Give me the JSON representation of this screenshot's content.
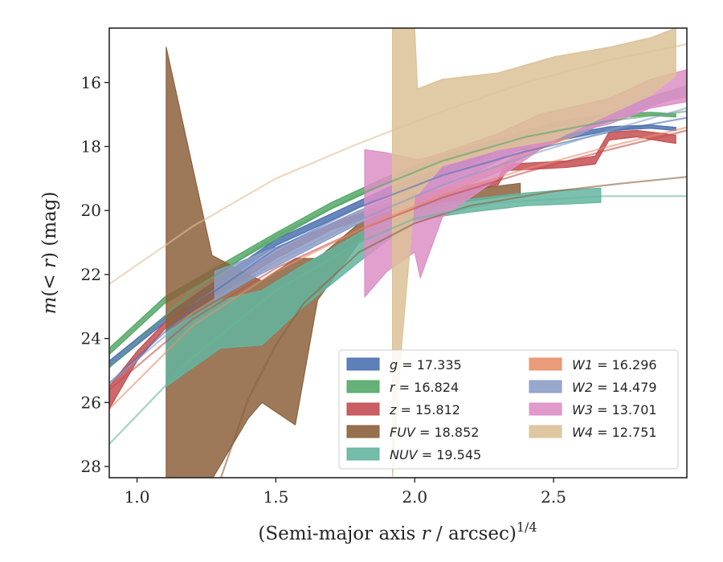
{
  "chart_data": {
    "type": "line",
    "title": "",
    "xlabel_main": "(Semi-major axis ",
    "xlabel_var": "r",
    "xlabel_tail": " / arcsec)",
    "xlabel_sup": "1/4",
    "ylabel_main": "m",
    "ylabel_open": "(< ",
    "ylabel_var": "r",
    "ylabel_tail": ") (mag)",
    "xlim": [
      0.9,
      2.98
    ],
    "ylim": [
      28.35,
      14.3
    ],
    "y_inverted": true,
    "xticks": [
      "1.0",
      "1.5",
      "2.0",
      "2.5"
    ],
    "xtick_values": [
      1.0,
      1.5,
      2.0,
      2.5
    ],
    "yticks": [
      "16",
      "18",
      "20",
      "22",
      "24",
      "26",
      "28"
    ],
    "ytick_values": [
      16,
      18,
      20,
      22,
      24,
      26,
      28
    ],
    "grid": false,
    "legend_position": "lower-right",
    "series": [
      {
        "name": "g = 17.335",
        "var": "g",
        "value": "17.335",
        "color": "#4c72b0",
        "band": [
          [
            0.9,
            24.9,
            24.7
          ],
          [
            1.1,
            23.5,
            23.3
          ],
          [
            1.3,
            22.3,
            22.1
          ],
          [
            1.5,
            21.1,
            20.9
          ],
          [
            1.7,
            20.3,
            20.1
          ],
          [
            1.9,
            19.5,
            19.3
          ],
          [
            2.1,
            18.85,
            18.65
          ],
          [
            2.3,
            18.3,
            18.15
          ],
          [
            2.5,
            17.85,
            17.7
          ],
          [
            2.7,
            17.5,
            17.38
          ],
          [
            2.85,
            17.43,
            17.33
          ],
          [
            2.94,
            17.5,
            17.4
          ]
        ],
        "model": [
          [
            0.9,
            25.4
          ],
          [
            1.2,
            23.0
          ],
          [
            1.5,
            21.2
          ],
          [
            1.8,
            19.9
          ],
          [
            2.1,
            18.9
          ],
          [
            2.4,
            18.15
          ],
          [
            2.7,
            17.55
          ],
          [
            2.98,
            17.1
          ]
        ]
      },
      {
        "name": "r = 16.824",
        "var": "r",
        "value": "16.824",
        "color": "#55a868",
        "band": [
          [
            0.9,
            24.5,
            24.3
          ],
          [
            1.1,
            22.9,
            22.7
          ],
          [
            1.3,
            21.9,
            21.7
          ],
          [
            1.5,
            20.9,
            20.7
          ],
          [
            1.7,
            19.95,
            19.75
          ],
          [
            1.9,
            19.15,
            18.95
          ],
          [
            2.1,
            18.45,
            18.25
          ],
          [
            2.3,
            17.9,
            17.75
          ],
          [
            2.5,
            17.4,
            17.25
          ],
          [
            2.7,
            17.1,
            16.98
          ],
          [
            2.85,
            17.03,
            16.93
          ],
          [
            2.94,
            17.08,
            16.98
          ]
        ],
        "model": [
          [
            0.9,
            24.9
          ],
          [
            1.2,
            22.5
          ],
          [
            1.5,
            20.8
          ],
          [
            1.8,
            19.5
          ],
          [
            2.1,
            18.45
          ],
          [
            2.4,
            17.7
          ],
          [
            2.7,
            17.2
          ],
          [
            2.98,
            16.9
          ]
        ]
      },
      {
        "name": "z = 15.812",
        "var": "z",
        "value": "15.812",
        "color": "#c44e52",
        "band": [
          [
            0.9,
            26.2,
            25.5
          ],
          [
            1.0,
            24.7,
            24.4
          ],
          [
            1.1,
            23.7,
            23.5
          ],
          [
            1.3,
            22.6,
            22.4
          ],
          [
            1.5,
            21.5,
            21.3
          ],
          [
            1.7,
            20.6,
            20.4
          ],
          [
            1.9,
            20.0,
            19.8
          ],
          [
            2.05,
            19.6,
            19.4
          ],
          [
            2.2,
            19.35,
            19.2
          ],
          [
            2.3,
            19.2,
            19.0
          ],
          [
            2.33,
            18.75,
            18.55
          ],
          [
            2.45,
            18.7,
            18.5
          ],
          [
            2.55,
            18.65,
            18.45
          ],
          [
            2.65,
            18.55,
            18.3
          ],
          [
            2.7,
            17.8,
            17.55
          ],
          [
            2.8,
            17.7,
            17.5
          ],
          [
            2.9,
            17.85,
            17.6
          ],
          [
            2.94,
            17.9,
            17.65
          ]
        ],
        "model": [
          [
            0.9,
            25.6
          ],
          [
            1.2,
            23.4
          ],
          [
            1.5,
            21.8
          ],
          [
            1.8,
            20.6
          ],
          [
            2.1,
            19.6
          ],
          [
            2.4,
            18.8
          ],
          [
            2.7,
            18.1
          ],
          [
            2.98,
            17.5
          ]
        ]
      },
      {
        "name": "FUV = 18.852",
        "var": "FUV",
        "value": "18.852",
        "color": "#8c613c",
        "band": [
          [
            1.105,
            28.4,
            14.9
          ],
          [
            1.27,
            28.4,
            21.4
          ],
          [
            1.4,
            26.5,
            22.0
          ],
          [
            1.45,
            26.0,
            22.2
          ],
          [
            1.57,
            26.7,
            21.5
          ],
          [
            1.65,
            22.8,
            21.5
          ],
          [
            1.8,
            21.0,
            20.4
          ],
          [
            2.0,
            20.0,
            19.7
          ],
          [
            2.2,
            19.7,
            19.35
          ],
          [
            2.38,
            19.5,
            19.15
          ]
        ],
        "model": [
          [
            1.3,
            28.4
          ],
          [
            1.4,
            25.9
          ],
          [
            1.5,
            24.2
          ],
          [
            1.6,
            22.9
          ],
          [
            1.8,
            21.3
          ],
          [
            2.0,
            20.4
          ],
          [
            2.2,
            19.85
          ],
          [
            2.5,
            19.4
          ],
          [
            2.75,
            19.15
          ],
          [
            2.98,
            18.95
          ]
        ]
      },
      {
        "name": "NUV = 19.545",
        "var": "NUV",
        "value": "19.545",
        "color": "#64b5a0",
        "band": [
          [
            1.105,
            25.5,
            23.8
          ],
          [
            1.3,
            24.3,
            22.8
          ],
          [
            1.45,
            24.2,
            22.5
          ],
          [
            1.6,
            23.0,
            21.7
          ],
          [
            1.8,
            21.6,
            20.7
          ],
          [
            2.0,
            20.3,
            19.9
          ],
          [
            2.2,
            20.05,
            19.65
          ],
          [
            2.4,
            19.85,
            19.45
          ],
          [
            2.55,
            19.8,
            19.35
          ],
          [
            2.67,
            19.75,
            19.3
          ]
        ],
        "model": [
          [
            0.9,
            27.3
          ],
          [
            1.2,
            24.6
          ],
          [
            1.5,
            22.5
          ],
          [
            1.8,
            21.0
          ],
          [
            2.0,
            20.25
          ],
          [
            2.3,
            19.75
          ],
          [
            2.68,
            19.55
          ],
          [
            2.98,
            19.55
          ]
        ]
      },
      {
        "name": "W1 = 16.296",
        "var": "W1",
        "value": "16.296",
        "color": "#e8906a",
        "band": [
          [
            1.93,
            20.0,
            19.8
          ],
          [
            2.1,
            19.5,
            19.3
          ],
          [
            2.3,
            18.8,
            18.6
          ],
          [
            2.4,
            18.3,
            18.1
          ],
          [
            2.5,
            17.9,
            17.7
          ],
          [
            2.6,
            17.6,
            17.35
          ],
          [
            2.7,
            17.2,
            16.9
          ],
          [
            2.8,
            16.9,
            16.6
          ],
          [
            2.9,
            16.6,
            16.3
          ],
          [
            2.98,
            16.45,
            16.2
          ]
        ],
        "model": [
          [
            0.9,
            26.2
          ],
          [
            1.2,
            23.6
          ],
          [
            1.5,
            21.9
          ],
          [
            1.8,
            20.6
          ],
          [
            2.1,
            19.5
          ],
          [
            2.4,
            18.7
          ],
          [
            2.7,
            18.0
          ],
          [
            2.98,
            17.4
          ]
        ]
      },
      {
        "name": "W2 = 14.479",
        "var": "W2",
        "value": "14.479",
        "color": "#8d9dc7",
        "band": [
          [
            1.28,
            22.8,
            21.9
          ],
          [
            1.4,
            22.2,
            21.5
          ],
          [
            1.6,
            21.3,
            20.8
          ],
          [
            1.8,
            20.4,
            20.0
          ],
          [
            2.0,
            19.6,
            19.3
          ],
          [
            2.2,
            18.9,
            18.6
          ],
          [
            2.4,
            18.0,
            17.7
          ],
          [
            2.6,
            17.6,
            17.3
          ],
          [
            2.7,
            17.2,
            16.9
          ],
          [
            2.8,
            16.9,
            16.6
          ],
          [
            2.98,
            16.35,
            16.1
          ]
        ],
        "model": [
          [
            0.9,
            25.4
          ],
          [
            1.2,
            23.2
          ],
          [
            1.5,
            21.6
          ],
          [
            1.8,
            20.3
          ],
          [
            2.1,
            19.2
          ],
          [
            2.4,
            18.3
          ],
          [
            2.7,
            17.5
          ],
          [
            2.98,
            16.8
          ]
        ]
      },
      {
        "name": "W3 = 13.701",
        "var": "W3",
        "value": "13.701",
        "color": "#dd8fc5",
        "band": [
          [
            1.82,
            22.7,
            18.1
          ],
          [
            1.9,
            21.9,
            18.2
          ],
          [
            2.0,
            21.3,
            18.4
          ],
          [
            2.02,
            22.1,
            18.4
          ],
          [
            2.1,
            20.2,
            18.2
          ],
          [
            2.3,
            19.0,
            17.6
          ],
          [
            2.45,
            18.1,
            17.0
          ],
          [
            2.55,
            17.6,
            16.8
          ],
          [
            2.7,
            17.3,
            16.5
          ],
          [
            2.85,
            16.8,
            15.9
          ],
          [
            2.98,
            16.6,
            15.6
          ]
        ],
        "model": []
      },
      {
        "name": "W4 = 12.751",
        "var": "W4",
        "value": "12.751",
        "color": "#dcc197",
        "band": [
          [
            1.92,
            28.3,
            14.3
          ],
          [
            1.95,
            24.5,
            14.3
          ],
          [
            2.0,
            19.5,
            14.3
          ],
          [
            2.01,
            19.5,
            16.2
          ],
          [
            2.1,
            18.6,
            15.9
          ],
          [
            2.3,
            18.1,
            15.7
          ],
          [
            2.5,
            17.8,
            15.2
          ],
          [
            2.7,
            17.0,
            14.9
          ],
          [
            2.85,
            16.4,
            14.6
          ],
          [
            2.94,
            15.8,
            14.3
          ]
        ],
        "model": [
          [
            0.9,
            22.3
          ],
          [
            1.2,
            20.5
          ],
          [
            1.5,
            19.0
          ],
          [
            1.8,
            17.9
          ],
          [
            2.1,
            16.9
          ],
          [
            2.4,
            16.0
          ],
          [
            2.7,
            15.3
          ],
          [
            2.98,
            14.8
          ]
        ]
      }
    ]
  }
}
